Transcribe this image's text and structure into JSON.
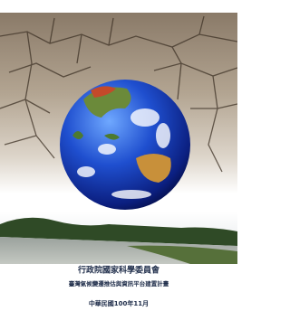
{
  "cover": {
    "publisher": "行政院國家科學委員會",
    "project": "臺灣氣候變遷推估與資訊平台建置計畫",
    "date": "中華民國100年11月"
  }
}
